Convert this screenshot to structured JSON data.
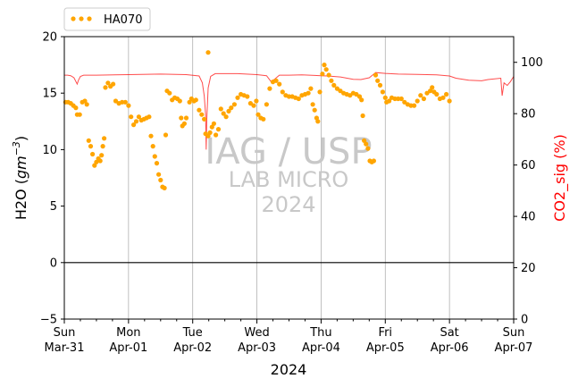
{
  "chart_data": {
    "type": "line",
    "xlabel": "2024",
    "ylabel_left": "H2O (gm-3)",
    "ylabel_left_text": "H2O (",
    "ylabel_left_unit": "gm",
    "ylabel_left_exp": "−3",
    "ylabel_left_close": ")",
    "ylabel_right": "CO2_sig (%)",
    "ylim_left": [
      -5,
      20
    ],
    "ylim_right": [
      0,
      110
    ],
    "yticks_left": [
      -5,
      0,
      5,
      10,
      15,
      20
    ],
    "yticks_right": [
      0,
      20,
      40,
      60,
      80,
      100
    ],
    "xlim_days": [
      0,
      7
    ],
    "xticks": [
      {
        "day": "Sun",
        "date": "Mar-31"
      },
      {
        "day": "Mon",
        "date": "Apr-01"
      },
      {
        "day": "Tue",
        "date": "Apr-02"
      },
      {
        "day": "Wed",
        "date": "Apr-03"
      },
      {
        "day": "Thu",
        "date": "Apr-04"
      },
      {
        "day": "Fri",
        "date": "Apr-05"
      },
      {
        "day": "Sat",
        "date": "Apr-06"
      },
      {
        "day": "Sun",
        "date": "Apr-07"
      }
    ],
    "grid": "x-major",
    "legend": {
      "placement": "top-left-outside",
      "entries": [
        "HA070"
      ]
    },
    "watermark": [
      "IAG / USP",
      "LAB MICRO",
      "2024"
    ],
    "colors": {
      "h2o": "#ffa500",
      "co2": "#ff0000",
      "co2_axis_label": "#ff0000",
      "grid": "#b0b0b0",
      "watermark": "#c8c8c8"
    },
    "series": [
      {
        "name": "HA070",
        "axis": "left",
        "style": "dots",
        "points": [
          [
            0.02,
            14.2
          ],
          [
            0.06,
            14.2
          ],
          [
            0.1,
            14.1
          ],
          [
            0.14,
            13.9
          ],
          [
            0.18,
            13.7
          ],
          [
            0.2,
            13.1
          ],
          [
            0.24,
            13.1
          ],
          [
            0.28,
            14.2
          ],
          [
            0.32,
            14.3
          ],
          [
            0.35,
            14.0
          ],
          [
            0.38,
            10.8
          ],
          [
            0.41,
            10.3
          ],
          [
            0.44,
            9.6
          ],
          [
            0.47,
            8.6
          ],
          [
            0.5,
            8.9
          ],
          [
            0.53,
            9.2
          ],
          [
            0.56,
            9.0
          ],
          [
            0.58,
            9.5
          ],
          [
            0.6,
            10.3
          ],
          [
            0.62,
            11.0
          ],
          [
            0.64,
            15.5
          ],
          [
            0.68,
            15.9
          ],
          [
            0.72,
            15.6
          ],
          [
            0.76,
            15.8
          ],
          [
            0.8,
            14.3
          ],
          [
            0.85,
            14.1
          ],
          [
            0.9,
            14.2
          ],
          [
            0.95,
            14.2
          ],
          [
            1.0,
            13.9
          ],
          [
            1.04,
            12.9
          ],
          [
            1.08,
            12.2
          ],
          [
            1.12,
            12.5
          ],
          [
            1.16,
            12.9
          ],
          [
            1.2,
            12.6
          ],
          [
            1.24,
            12.7
          ],
          [
            1.28,
            12.8
          ],
          [
            1.32,
            12.9
          ],
          [
            1.35,
            11.2
          ],
          [
            1.38,
            10.3
          ],
          [
            1.41,
            9.4
          ],
          [
            1.44,
            8.8
          ],
          [
            1.47,
            7.8
          ],
          [
            1.5,
            7.3
          ],
          [
            1.53,
            6.7
          ],
          [
            1.56,
            6.6
          ],
          [
            1.58,
            11.3
          ],
          [
            1.6,
            15.2
          ],
          [
            1.64,
            15.0
          ],
          [
            1.68,
            14.4
          ],
          [
            1.72,
            14.6
          ],
          [
            1.76,
            14.5
          ],
          [
            1.8,
            14.3
          ],
          [
            1.82,
            12.8
          ],
          [
            1.84,
            12.1
          ],
          [
            1.87,
            12.3
          ],
          [
            1.9,
            12.8
          ],
          [
            1.95,
            14.2
          ],
          [
            1.98,
            14.5
          ],
          [
            2.02,
            14.3
          ],
          [
            2.05,
            14.4
          ],
          [
            2.1,
            13.5
          ],
          [
            2.14,
            13.1
          ],
          [
            2.18,
            12.7
          ],
          [
            2.2,
            11.4
          ],
          [
            2.24,
            11.2
          ],
          [
            2.27,
            11.5
          ],
          [
            2.3,
            12.0
          ],
          [
            2.33,
            12.3
          ],
          [
            2.36,
            11.3
          ],
          [
            2.4,
            11.8
          ],
          [
            2.44,
            13.6
          ],
          [
            2.48,
            13.2
          ],
          [
            2.52,
            12.9
          ],
          [
            2.56,
            13.4
          ],
          [
            2.6,
            13.7
          ],
          [
            2.65,
            14.0
          ],
          [
            2.7,
            14.6
          ],
          [
            2.75,
            14.9
          ],
          [
            2.8,
            14.8
          ],
          [
            2.85,
            14.7
          ],
          [
            2.9,
            14.1
          ],
          [
            2.95,
            13.9
          ],
          [
            2.99,
            14.3
          ],
          [
            3.02,
            13.1
          ],
          [
            3.06,
            12.8
          ],
          [
            3.1,
            12.7
          ],
          [
            3.15,
            14.0
          ],
          [
            3.2,
            15.4
          ],
          [
            3.25,
            16.0
          ],
          [
            3.3,
            16.1
          ],
          [
            3.35,
            15.8
          ],
          [
            3.4,
            15.1
          ],
          [
            3.45,
            14.8
          ],
          [
            3.5,
            14.7
          ],
          [
            3.55,
            14.7
          ],
          [
            3.6,
            14.6
          ],
          [
            3.65,
            14.5
          ],
          [
            3.7,
            14.8
          ],
          [
            3.75,
            14.9
          ],
          [
            3.8,
            15.0
          ],
          [
            3.84,
            15.4
          ],
          [
            3.87,
            14.0
          ],
          [
            3.9,
            13.5
          ],
          [
            3.93,
            12.8
          ],
          [
            3.95,
            12.5
          ],
          [
            3.98,
            15.1
          ],
          [
            4.02,
            16.7
          ],
          [
            4.05,
            17.5
          ],
          [
            4.08,
            17.1
          ],
          [
            4.12,
            16.6
          ],
          [
            4.16,
            16.1
          ],
          [
            4.2,
            15.7
          ],
          [
            4.25,
            15.4
          ],
          [
            4.3,
            15.2
          ],
          [
            4.35,
            15.0
          ],
          [
            4.4,
            14.9
          ],
          [
            4.45,
            14.8
          ],
          [
            4.5,
            15.0
          ],
          [
            4.55,
            14.9
          ],
          [
            4.6,
            14.7
          ],
          [
            4.63,
            14.4
          ],
          [
            4.65,
            13.0
          ],
          [
            4.67,
            10.8
          ],
          [
            4.7,
            10.5
          ],
          [
            4.73,
            10.1
          ],
          [
            4.76,
            9.0
          ],
          [
            4.79,
            8.9
          ],
          [
            4.82,
            9.0
          ],
          [
            4.85,
            16.6
          ],
          [
            4.88,
            16.1
          ],
          [
            4.92,
            15.7
          ],
          [
            4.96,
            15.1
          ],
          [
            5.0,
            14.6
          ],
          [
            5.02,
            14.2
          ],
          [
            5.06,
            14.3
          ],
          [
            5.1,
            14.6
          ],
          [
            5.15,
            14.5
          ],
          [
            5.2,
            14.5
          ],
          [
            5.25,
            14.5
          ],
          [
            5.3,
            14.2
          ],
          [
            5.35,
            14.0
          ],
          [
            5.4,
            13.9
          ],
          [
            5.45,
            13.9
          ],
          [
            5.5,
            14.3
          ],
          [
            5.55,
            14.8
          ],
          [
            5.6,
            14.5
          ],
          [
            5.65,
            15.0
          ],
          [
            5.7,
            15.2
          ],
          [
            5.73,
            15.5
          ],
          [
            5.76,
            15.1
          ],
          [
            5.8,
            14.9
          ],
          [
            5.85,
            14.5
          ],
          [
            5.9,
            14.6
          ],
          [
            5.95,
            14.9
          ],
          [
            6.0,
            14.3
          ],
          [
            2.24,
            18.6
          ]
        ]
      },
      {
        "name": "CO2_sig",
        "axis": "right",
        "style": "line",
        "points": [
          [
            0,
            95
          ],
          [
            0.05,
            95
          ],
          [
            0.1,
            94.8
          ],
          [
            0.15,
            94
          ],
          [
            0.2,
            91.5
          ],
          [
            0.22,
            93
          ],
          [
            0.25,
            94.5
          ],
          [
            0.3,
            95
          ],
          [
            0.5,
            95
          ],
          [
            1.0,
            95.2
          ],
          [
            1.5,
            95.4
          ],
          [
            1.9,
            95.2
          ],
          [
            2.1,
            94.7
          ],
          [
            2.15,
            92
          ],
          [
            2.18,
            87
          ],
          [
            2.2,
            80
          ],
          [
            2.21,
            66
          ],
          [
            2.22,
            78
          ],
          [
            2.24,
            90
          ],
          [
            2.28,
            94.5
          ],
          [
            2.35,
            95.6
          ],
          [
            2.7,
            95.6
          ],
          [
            3.0,
            95.2
          ],
          [
            3.15,
            94.8
          ],
          [
            3.22,
            92.5
          ],
          [
            3.28,
            93.5
          ],
          [
            3.35,
            95
          ],
          [
            3.5,
            95
          ],
          [
            3.7,
            95.1
          ],
          [
            3.9,
            94.9
          ],
          [
            4.0,
            94.8
          ],
          [
            4.1,
            94.7
          ],
          [
            4.3,
            94.3
          ],
          [
            4.5,
            93.4
          ],
          [
            4.62,
            93.3
          ],
          [
            4.75,
            94
          ],
          [
            4.8,
            95
          ],
          [
            4.85,
            96
          ],
          [
            5.0,
            95.7
          ],
          [
            5.2,
            95.4
          ],
          [
            5.5,
            95.3
          ],
          [
            5.8,
            95.1
          ],
          [
            6.0,
            94.7
          ],
          [
            6.1,
            93.8
          ],
          [
            6.3,
            93
          ],
          [
            6.5,
            92.8
          ],
          [
            6.6,
            93.3
          ],
          [
            6.8,
            93.8
          ],
          [
            6.82,
            87
          ],
          [
            6.85,
            92
          ],
          [
            6.9,
            91
          ],
          [
            6.95,
            92.5
          ],
          [
            7.0,
            94.5
          ]
        ]
      }
    ]
  }
}
